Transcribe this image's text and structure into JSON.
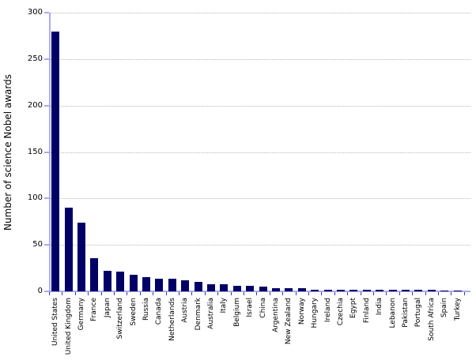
{
  "chart_data": {
    "type": "bar",
    "title": "",
    "ylabel": "Number of science Nobel awards",
    "xlabel": "",
    "ylim": [
      0,
      300
    ],
    "yticks": [
      0,
      50,
      100,
      150,
      200,
      250,
      300
    ],
    "grid": "horizontal-dotted",
    "legend": "none",
    "colors": {
      "bar": "#000066",
      "axis": "#aaaaee",
      "x_tick": "#3333cc",
      "grid": "#b8b8b8",
      "text": "#000000",
      "background": "#ffffff"
    },
    "categories": [
      "United States",
      "United Kingdom",
      "Germany",
      "France",
      "Japan",
      "Switzerland",
      "Sweden",
      "Russia",
      "Canada",
      "Netherlands",
      "Austria",
      "Denmark",
      "Australia",
      "Italy",
      "Belgium",
      "Israel",
      "China",
      "Argentina",
      "New Zealand",
      "Norway",
      "Hungary",
      "Ireland",
      "Czechia",
      "Egypt",
      "Finland",
      "India",
      "Lebanon",
      "Pakistan",
      "Portugal",
      "South Africa",
      "Spain",
      "Turkey"
    ],
    "values": [
      280,
      90,
      74,
      36,
      22,
      21,
      18,
      15,
      14,
      14,
      12,
      10,
      8,
      8,
      6,
      6,
      5,
      3,
      3,
      3,
      2,
      2,
      2,
      2,
      2,
      2,
      2,
      2,
      2,
      2,
      1,
      1
    ]
  }
}
